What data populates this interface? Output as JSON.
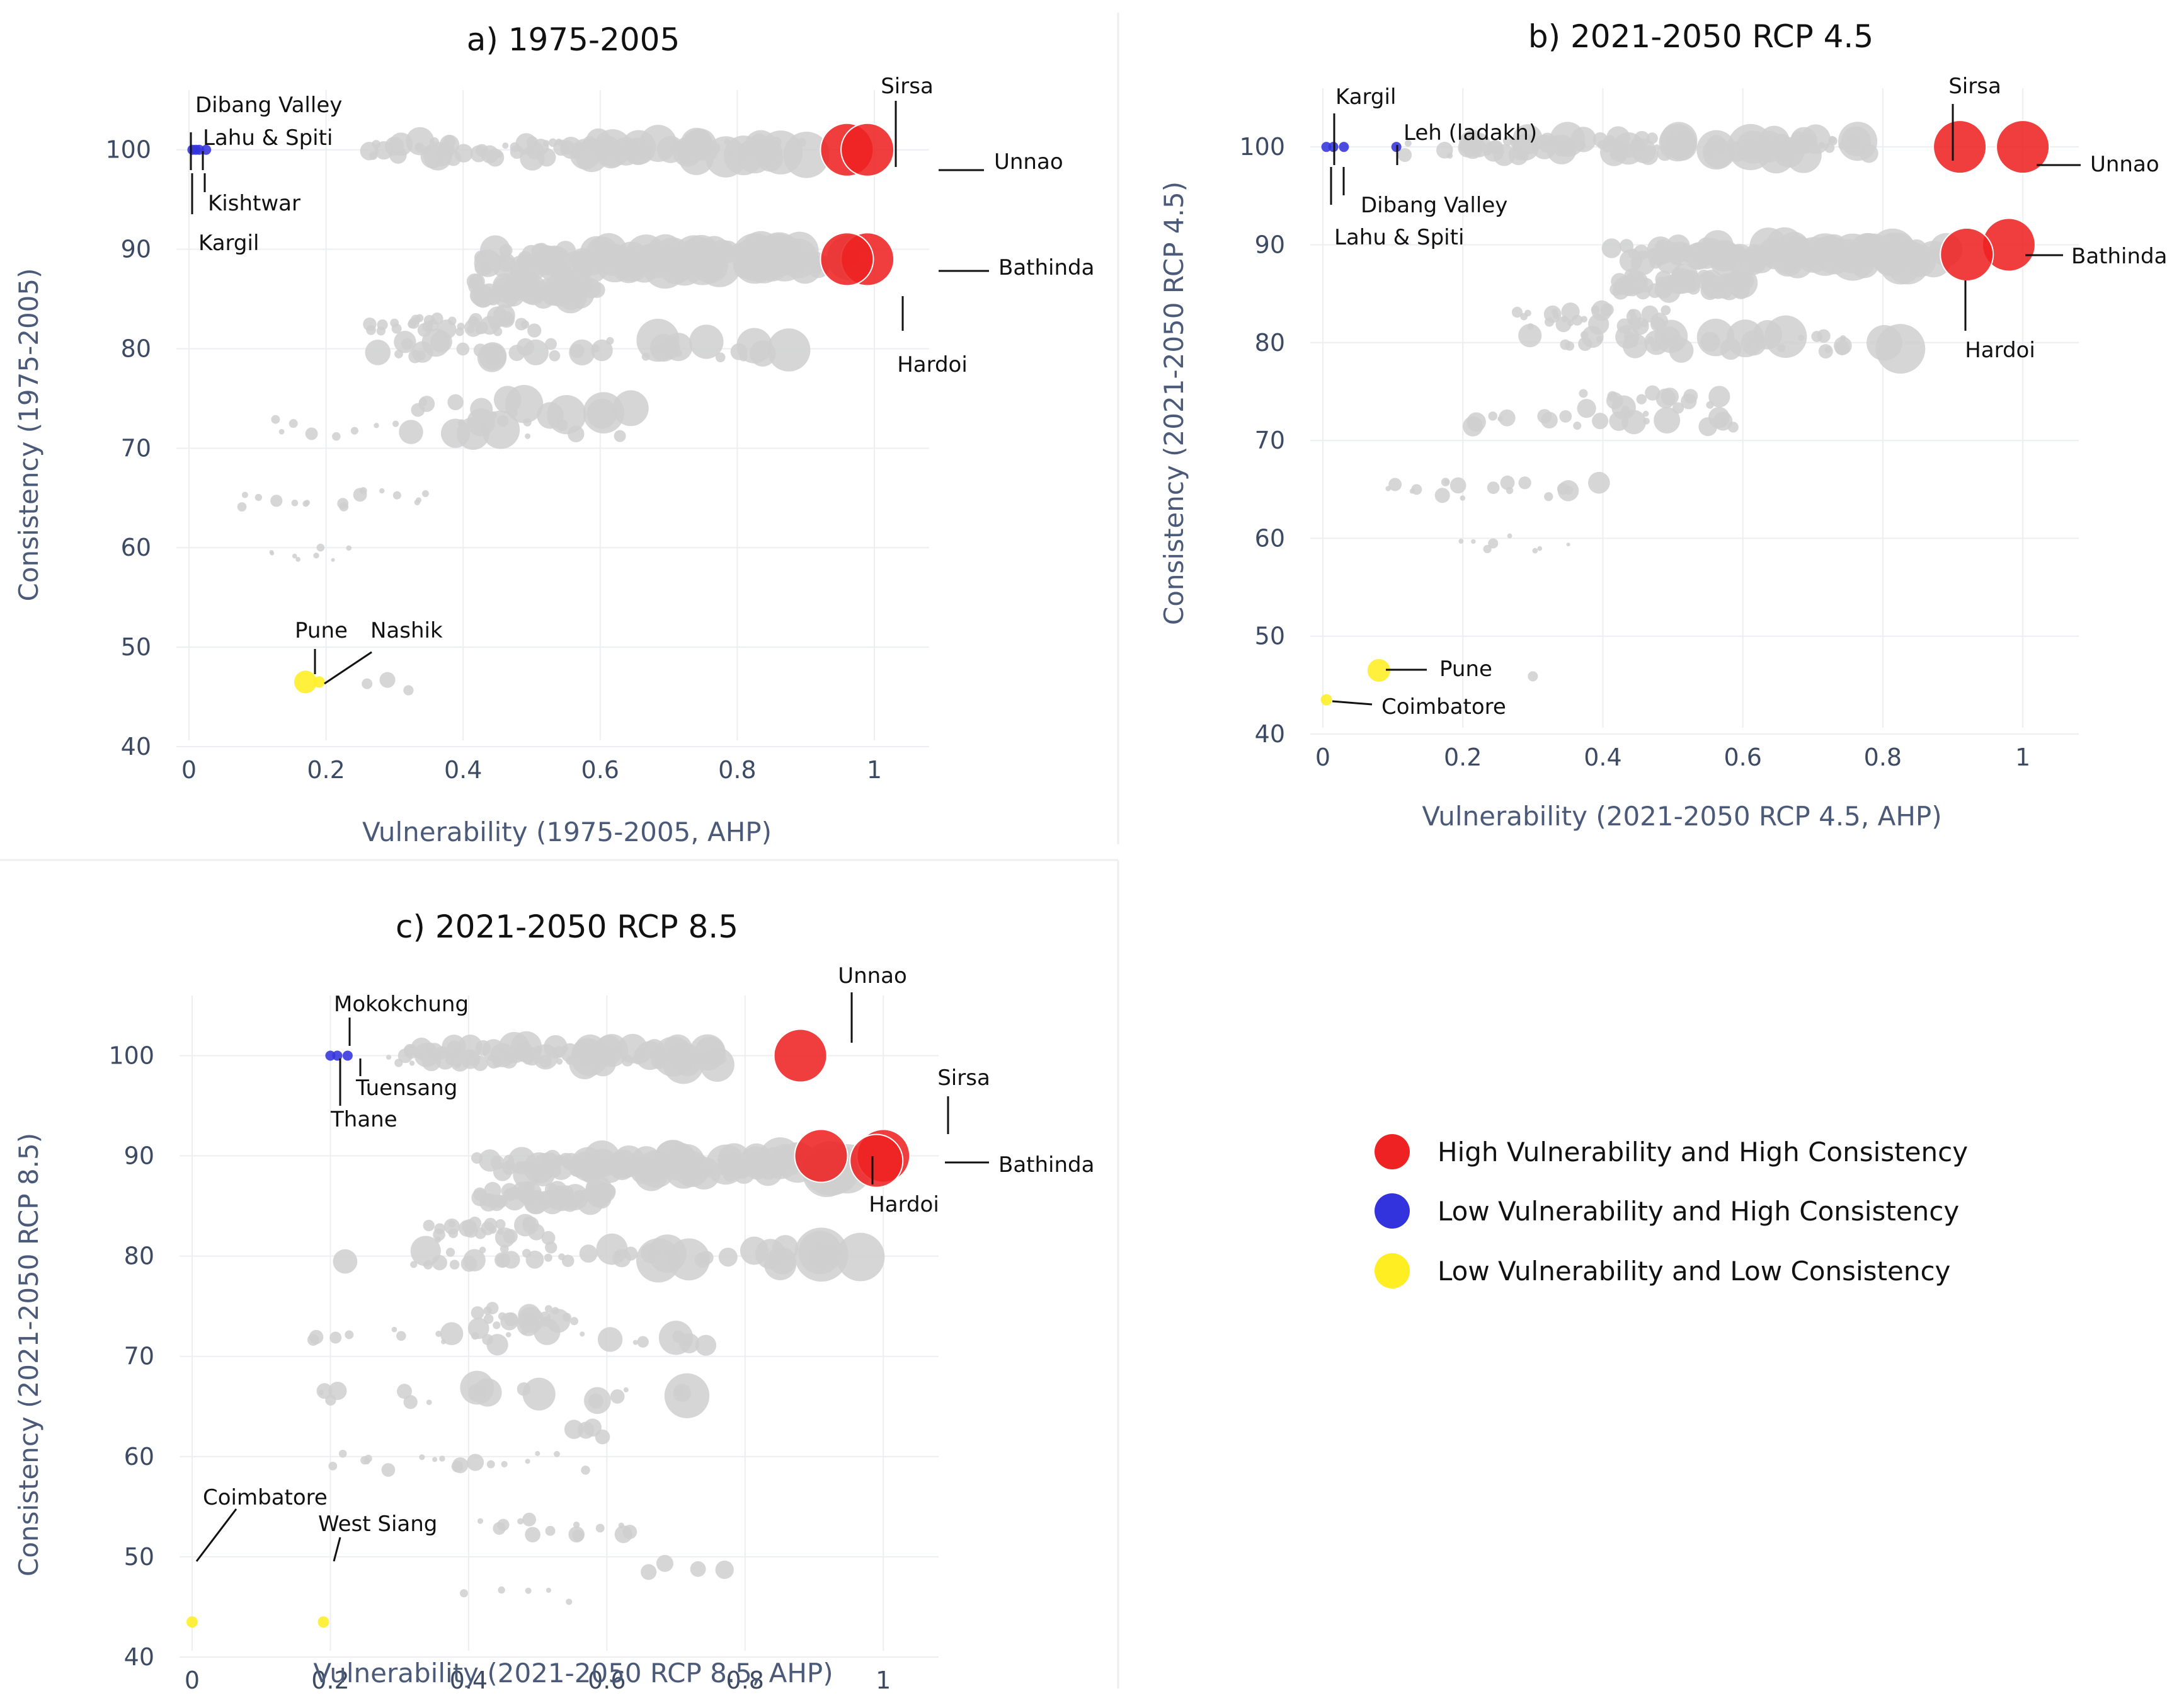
{
  "colors": {
    "background_points": "#cfcfcf",
    "high_vuln_high_cons": "#ee2222",
    "low_vuln_high_cons": "#3333dd",
    "low_vuln_low_cons": "#ffee22"
  },
  "legend": {
    "items": [
      {
        "label": "High Vulnerability and High Consistency",
        "color": "#ee2222"
      },
      {
        "label": "Low Vulnerability and High Consistency",
        "color": "#3333dd"
      },
      {
        "label": "Low Vulnerability and Low Consistency",
        "color": "#ffee22"
      }
    ]
  },
  "chart_data": [
    {
      "type": "scatter",
      "title": "a) 1975-2005",
      "xlabel": "Vulnerability (1975-2005, AHP)",
      "ylabel": "Consistency (1975-2005)",
      "xlim": [
        0,
        1.08
      ],
      "ylim": [
        40,
        106
      ],
      "xticks": [
        "0",
        "0.2",
        "0.4",
        "0.6",
        "0.8",
        "1"
      ],
      "yticks": [
        "40",
        "50",
        "60",
        "70",
        "80",
        "90",
        "100"
      ],
      "grid": true,
      "highlighted": [
        {
          "name": "Sirsa",
          "x": 0.96,
          "y": 100,
          "group": "high"
        },
        {
          "name": "Unnao",
          "x": 0.99,
          "y": 100,
          "group": "high"
        },
        {
          "name": "Bathinda",
          "x": 0.99,
          "y": 89,
          "group": "high"
        },
        {
          "name": "Hardoi",
          "x": 0.96,
          "y": 89,
          "group": "high"
        },
        {
          "name": "Dibang Valley",
          "x": 0.005,
          "y": 100,
          "group": "low_high"
        },
        {
          "name": "Lahu & Spiti",
          "x": 0.015,
          "y": 100,
          "group": "low_high"
        },
        {
          "name": "Kishtwar",
          "x": 0.025,
          "y": 100,
          "group": "low_high"
        },
        {
          "name": "Kargil",
          "x": 0.01,
          "y": 100,
          "group": "low_high"
        },
        {
          "name": "Pune",
          "x": 0.17,
          "y": 46.5,
          "group": "low_low"
        },
        {
          "name": "Nashik",
          "x": 0.19,
          "y": 46.5,
          "group": "low_low"
        }
      ]
    },
    {
      "type": "scatter",
      "title": "b) 2021-2050 RCP 4.5",
      "xlabel": "Vulnerability (2021-2050 RCP 4.5, AHP)",
      "ylabel": "Consistency (2021-2050 RCP 4.5)",
      "xlim": [
        0,
        1.08
      ],
      "ylim": [
        40,
        106
      ],
      "xticks": [
        "0",
        "0.2",
        "0.4",
        "0.6",
        "0.8",
        "1"
      ],
      "yticks": [
        "40",
        "50",
        "60",
        "70",
        "80",
        "90",
        "100"
      ],
      "grid": true,
      "highlighted": [
        {
          "name": "Sirsa",
          "x": 0.91,
          "y": 100,
          "group": "high"
        },
        {
          "name": "Unnao",
          "x": 1.0,
          "y": 100,
          "group": "high"
        },
        {
          "name": "Bathinda",
          "x": 0.98,
          "y": 90,
          "group": "high"
        },
        {
          "name": "Hardoi",
          "x": 0.92,
          "y": 89,
          "group": "high"
        },
        {
          "name": "Kargil",
          "x": 0.005,
          "y": 100,
          "group": "low_high"
        },
        {
          "name": "Leh (ladakh)",
          "x": 0.105,
          "y": 100,
          "group": "low_high"
        },
        {
          "name": "Dibang Valley",
          "x": 0.03,
          "y": 100,
          "group": "low_high"
        },
        {
          "name": "Lahu & Spiti",
          "x": 0.015,
          "y": 100,
          "group": "low_high"
        },
        {
          "name": "Pune",
          "x": 0.08,
          "y": 46.5,
          "group": "low_low"
        },
        {
          "name": "Coimbatore",
          "x": 0.005,
          "y": 43.5,
          "group": "low_low"
        }
      ]
    },
    {
      "type": "scatter",
      "title": "c) 2021-2050 RCP 8.5",
      "xlabel": "Vulnerability (2021-2050 RCP 8.5, AHP)",
      "ylabel": "Consistency (2021-2050 RCP 8.5)",
      "xlim": [
        0,
        1.08
      ],
      "ylim": [
        40,
        106
      ],
      "xticks": [
        "0",
        "0.2",
        "0.4",
        "0.6",
        "0.8",
        "1"
      ],
      "yticks": [
        "40",
        "50",
        "60",
        "70",
        "80",
        "90",
        "100"
      ],
      "grid": true,
      "highlighted": [
        {
          "name": "Unnao",
          "x": 0.88,
          "y": 100,
          "group": "high"
        },
        {
          "name": "Sirsa",
          "x": 1.0,
          "y": 90,
          "group": "high"
        },
        {
          "name": "Bathinda",
          "x": 0.99,
          "y": 89.5,
          "group": "high"
        },
        {
          "name": "Hardoi",
          "x": 0.91,
          "y": 90,
          "group": "high"
        },
        {
          "name": "Mokokchung",
          "x": 0.21,
          "y": 100,
          "group": "low_high"
        },
        {
          "name": "Tuensang",
          "x": 0.225,
          "y": 100,
          "group": "low_high"
        },
        {
          "name": "Thane",
          "x": 0.2,
          "y": 100,
          "group": "low_high"
        },
        {
          "name": "Coimbatore",
          "x": 0.0,
          "y": 43.5,
          "group": "low_low"
        },
        {
          "name": "West Siang",
          "x": 0.19,
          "y": 43.5,
          "group": "low_low"
        }
      ]
    }
  ]
}
